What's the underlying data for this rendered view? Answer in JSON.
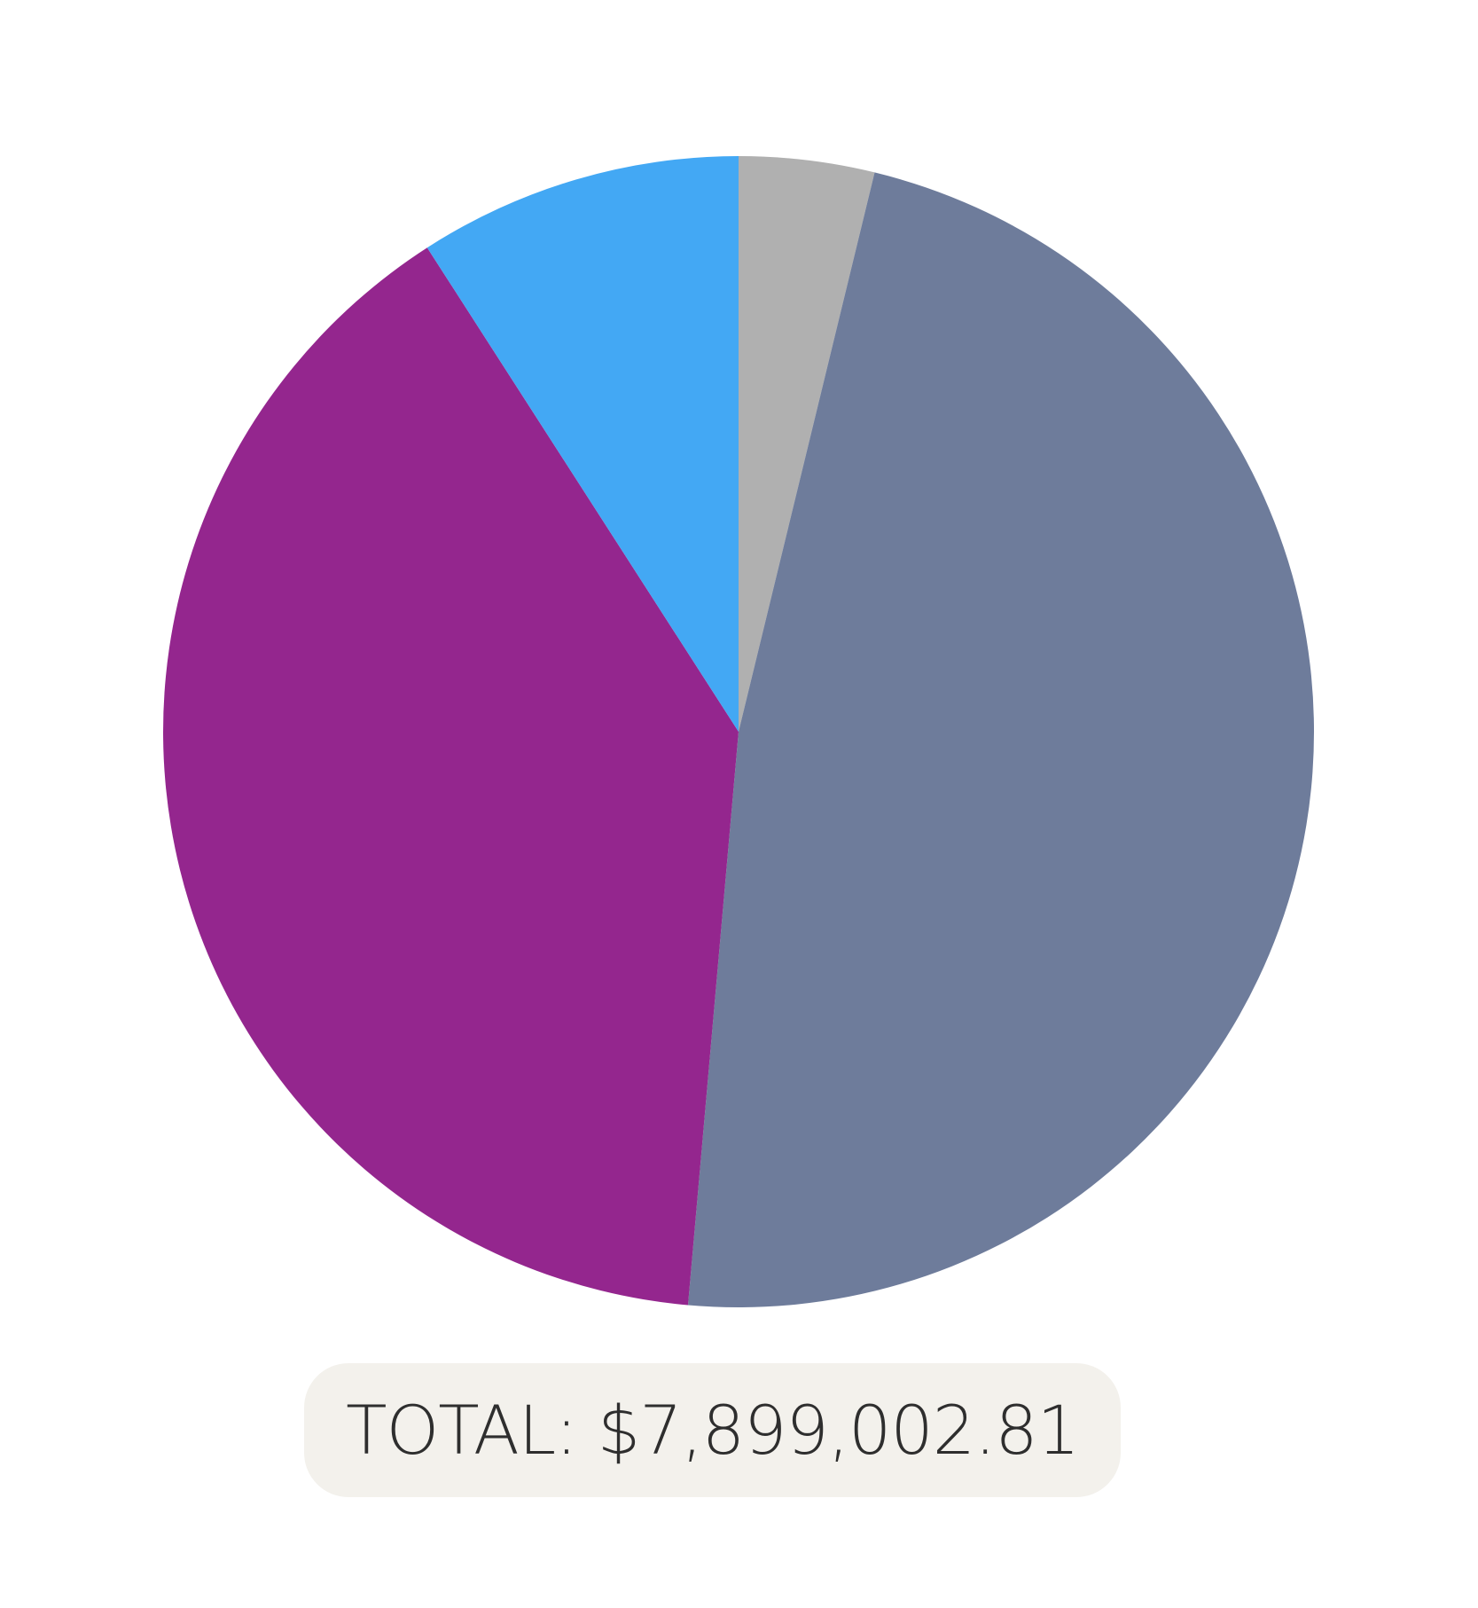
{
  "chart_data": {
    "type": "pie",
    "slices": [
      {
        "value": 3.8,
        "color": "#b0b0b0"
      },
      {
        "value": 47.6,
        "color": "#6e7c9b"
      },
      {
        "value": 39.5,
        "color": "#94268e"
      },
      {
        "value": 9.1,
        "color": "#43a8f4"
      }
    ],
    "start_angle_deg": 0,
    "direction": "clockwise"
  },
  "summary": {
    "total_label": "TOTAL: $7,899,002.81"
  },
  "colors": {
    "background": "#ffffff",
    "total_pill_background": "#f3f1ec",
    "total_text": "#2e2e2e"
  }
}
